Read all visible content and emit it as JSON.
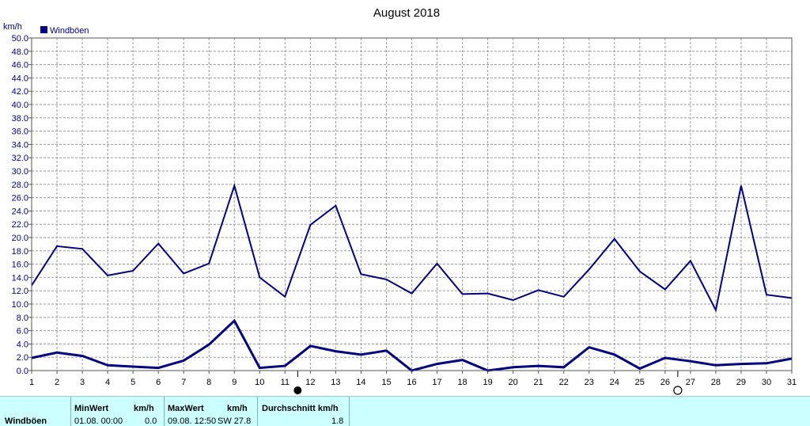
{
  "chart_data": {
    "type": "line",
    "title": "August 2018",
    "ylabel": "km/h",
    "legend": {
      "label": "Windböen",
      "color": "#000080",
      "placement": "top-left"
    },
    "ylim": [
      0,
      50
    ],
    "ytick_step": 2,
    "ytick_labels": [
      "0.0",
      "2.0",
      "4.0",
      "6.0",
      "8.0",
      "10.0",
      "12.0",
      "14.0",
      "16.0",
      "18.0",
      "20.0",
      "22.0",
      "24.0",
      "26.0",
      "28.0",
      "30.0",
      "32.0",
      "34.0",
      "36.0",
      "38.0",
      "40.0",
      "42.0",
      "44.0",
      "46.0",
      "48.0",
      "50.0"
    ],
    "x": [
      1,
      2,
      3,
      4,
      5,
      6,
      7,
      8,
      9,
      10,
      11,
      12,
      13,
      14,
      15,
      16,
      17,
      18,
      19,
      20,
      21,
      22,
      23,
      24,
      25,
      26,
      27,
      28,
      29,
      30,
      31
    ],
    "grid": true,
    "series": [
      {
        "role": "max",
        "values": [
          12.8,
          18.7,
          18.3,
          14.3,
          15.0,
          19.1,
          14.6,
          16.1,
          27.8,
          14.0,
          11.1,
          21.9,
          24.8,
          14.5,
          13.7,
          11.6,
          16.1,
          11.5,
          11.6,
          10.6,
          12.1,
          11.1,
          15.2,
          19.8,
          14.9,
          12.2,
          16.5,
          9.1,
          27.8,
          11.4,
          10.9
        ]
      },
      {
        "role": "mean",
        "values": [
          1.9,
          2.7,
          2.2,
          0.8,
          0.6,
          0.4,
          1.5,
          3.9,
          7.5,
          0.4,
          0.7,
          3.7,
          2.9,
          2.4,
          3.0,
          0.0,
          1.0,
          1.6,
          0.0,
          0.5,
          0.7,
          0.5,
          3.5,
          2.4,
          0.3,
          1.9,
          1.4,
          0.8,
          1.0,
          1.1,
          1.8
        ]
      }
    ],
    "moon_markers": [
      {
        "phase": "new-moon",
        "day": 11.5
      },
      {
        "phase": "full-moon",
        "day": 26.5
      }
    ]
  },
  "stats": {
    "row_label": "Windböen",
    "min": {
      "header": "MinWert",
      "unit": "km/h",
      "when": "01.08.  00:00",
      "value": "0.0"
    },
    "max": {
      "header": "MaxWert",
      "unit": "km/h",
      "when": "09.08.  12:50",
      "dir_value": "SW 27.8"
    },
    "avg": {
      "header": "Durchschnitt km/h",
      "value": "1.8"
    }
  }
}
